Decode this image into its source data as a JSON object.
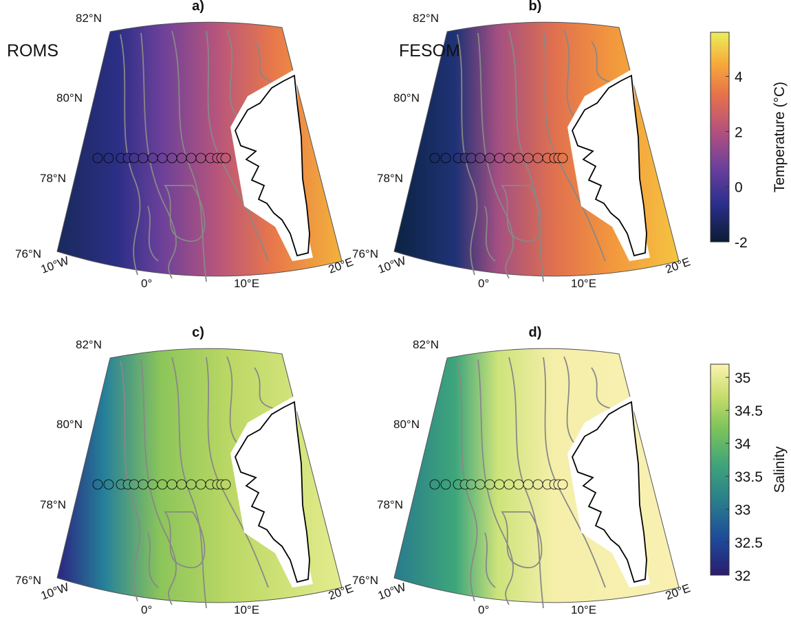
{
  "panels": [
    {
      "label": "a)",
      "model": "ROMS"
    },
    {
      "label": "b)",
      "model": "FESOM"
    },
    {
      "label": "c)"
    },
    {
      "label": "d)"
    }
  ],
  "lat_labels": [
    "82°N",
    "80°N",
    "78°N",
    "76°N"
  ],
  "lon_labels": [
    "10°W",
    "0°",
    "10°E",
    "20°E"
  ],
  "colorbars": [
    {
      "label": "Temperature (°C)",
      "lim": [
        -2,
        5.6
      ],
      "ticks": [
        -2,
        0,
        2,
        4
      ]
    },
    {
      "label": "Salinity",
      "lim": [
        32,
        35.2
      ],
      "ticks": [
        32,
        32.5,
        33,
        33.5,
        34,
        34.5,
        35
      ]
    }
  ]
}
